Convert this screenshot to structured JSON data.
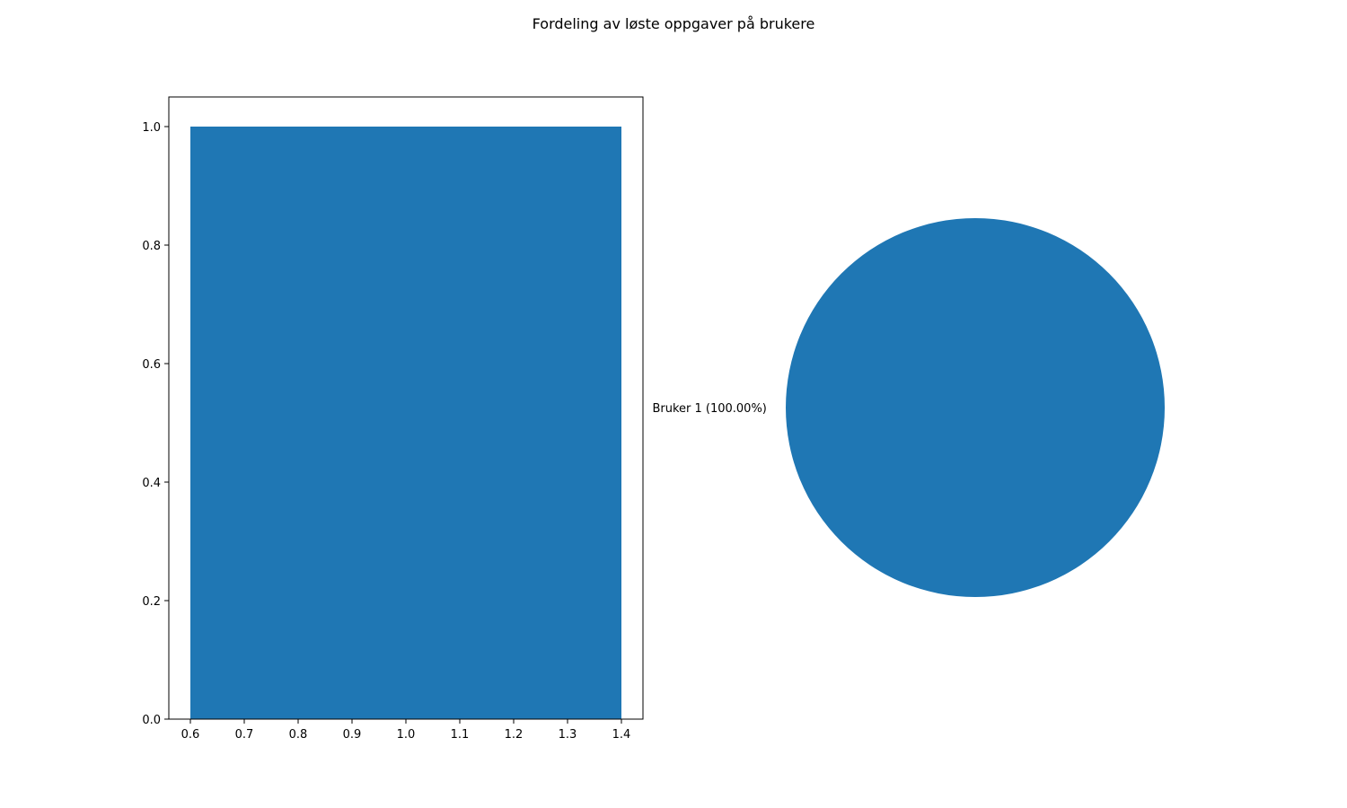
{
  "title": "Fordeling av løste oppgaver på brukere",
  "colors": {
    "series": "#1f77b4",
    "axis": "#000000",
    "background": "#ffffff"
  },
  "chart_data": [
    {
      "type": "bar",
      "title": "",
      "xlabel": "",
      "ylabel": "",
      "bars": [
        {
          "x": 1.0,
          "width": 0.8,
          "value": 1.0
        }
      ],
      "xlim": [
        0.56,
        1.44
      ],
      "ylim": [
        0.0,
        1.05
      ],
      "xticks": [
        "0.6",
        "0.7",
        "0.8",
        "0.9",
        "1.0",
        "1.1",
        "1.2",
        "1.3",
        "1.4"
      ],
      "xtick_values": [
        0.6,
        0.7,
        0.8,
        0.9,
        1.0,
        1.1,
        1.2,
        1.3,
        1.4
      ],
      "yticks": [
        "0.0",
        "0.2",
        "0.4",
        "0.6",
        "0.8",
        "1.0"
      ],
      "ytick_values": [
        0.0,
        0.2,
        0.4,
        0.6,
        0.8,
        1.0
      ],
      "grid": false,
      "legend": "none"
    },
    {
      "type": "pie",
      "title": "",
      "slices": [
        {
          "label": "Bruker 1 (100.00%)",
          "value": 100.0
        }
      ],
      "legend": "none"
    }
  ]
}
